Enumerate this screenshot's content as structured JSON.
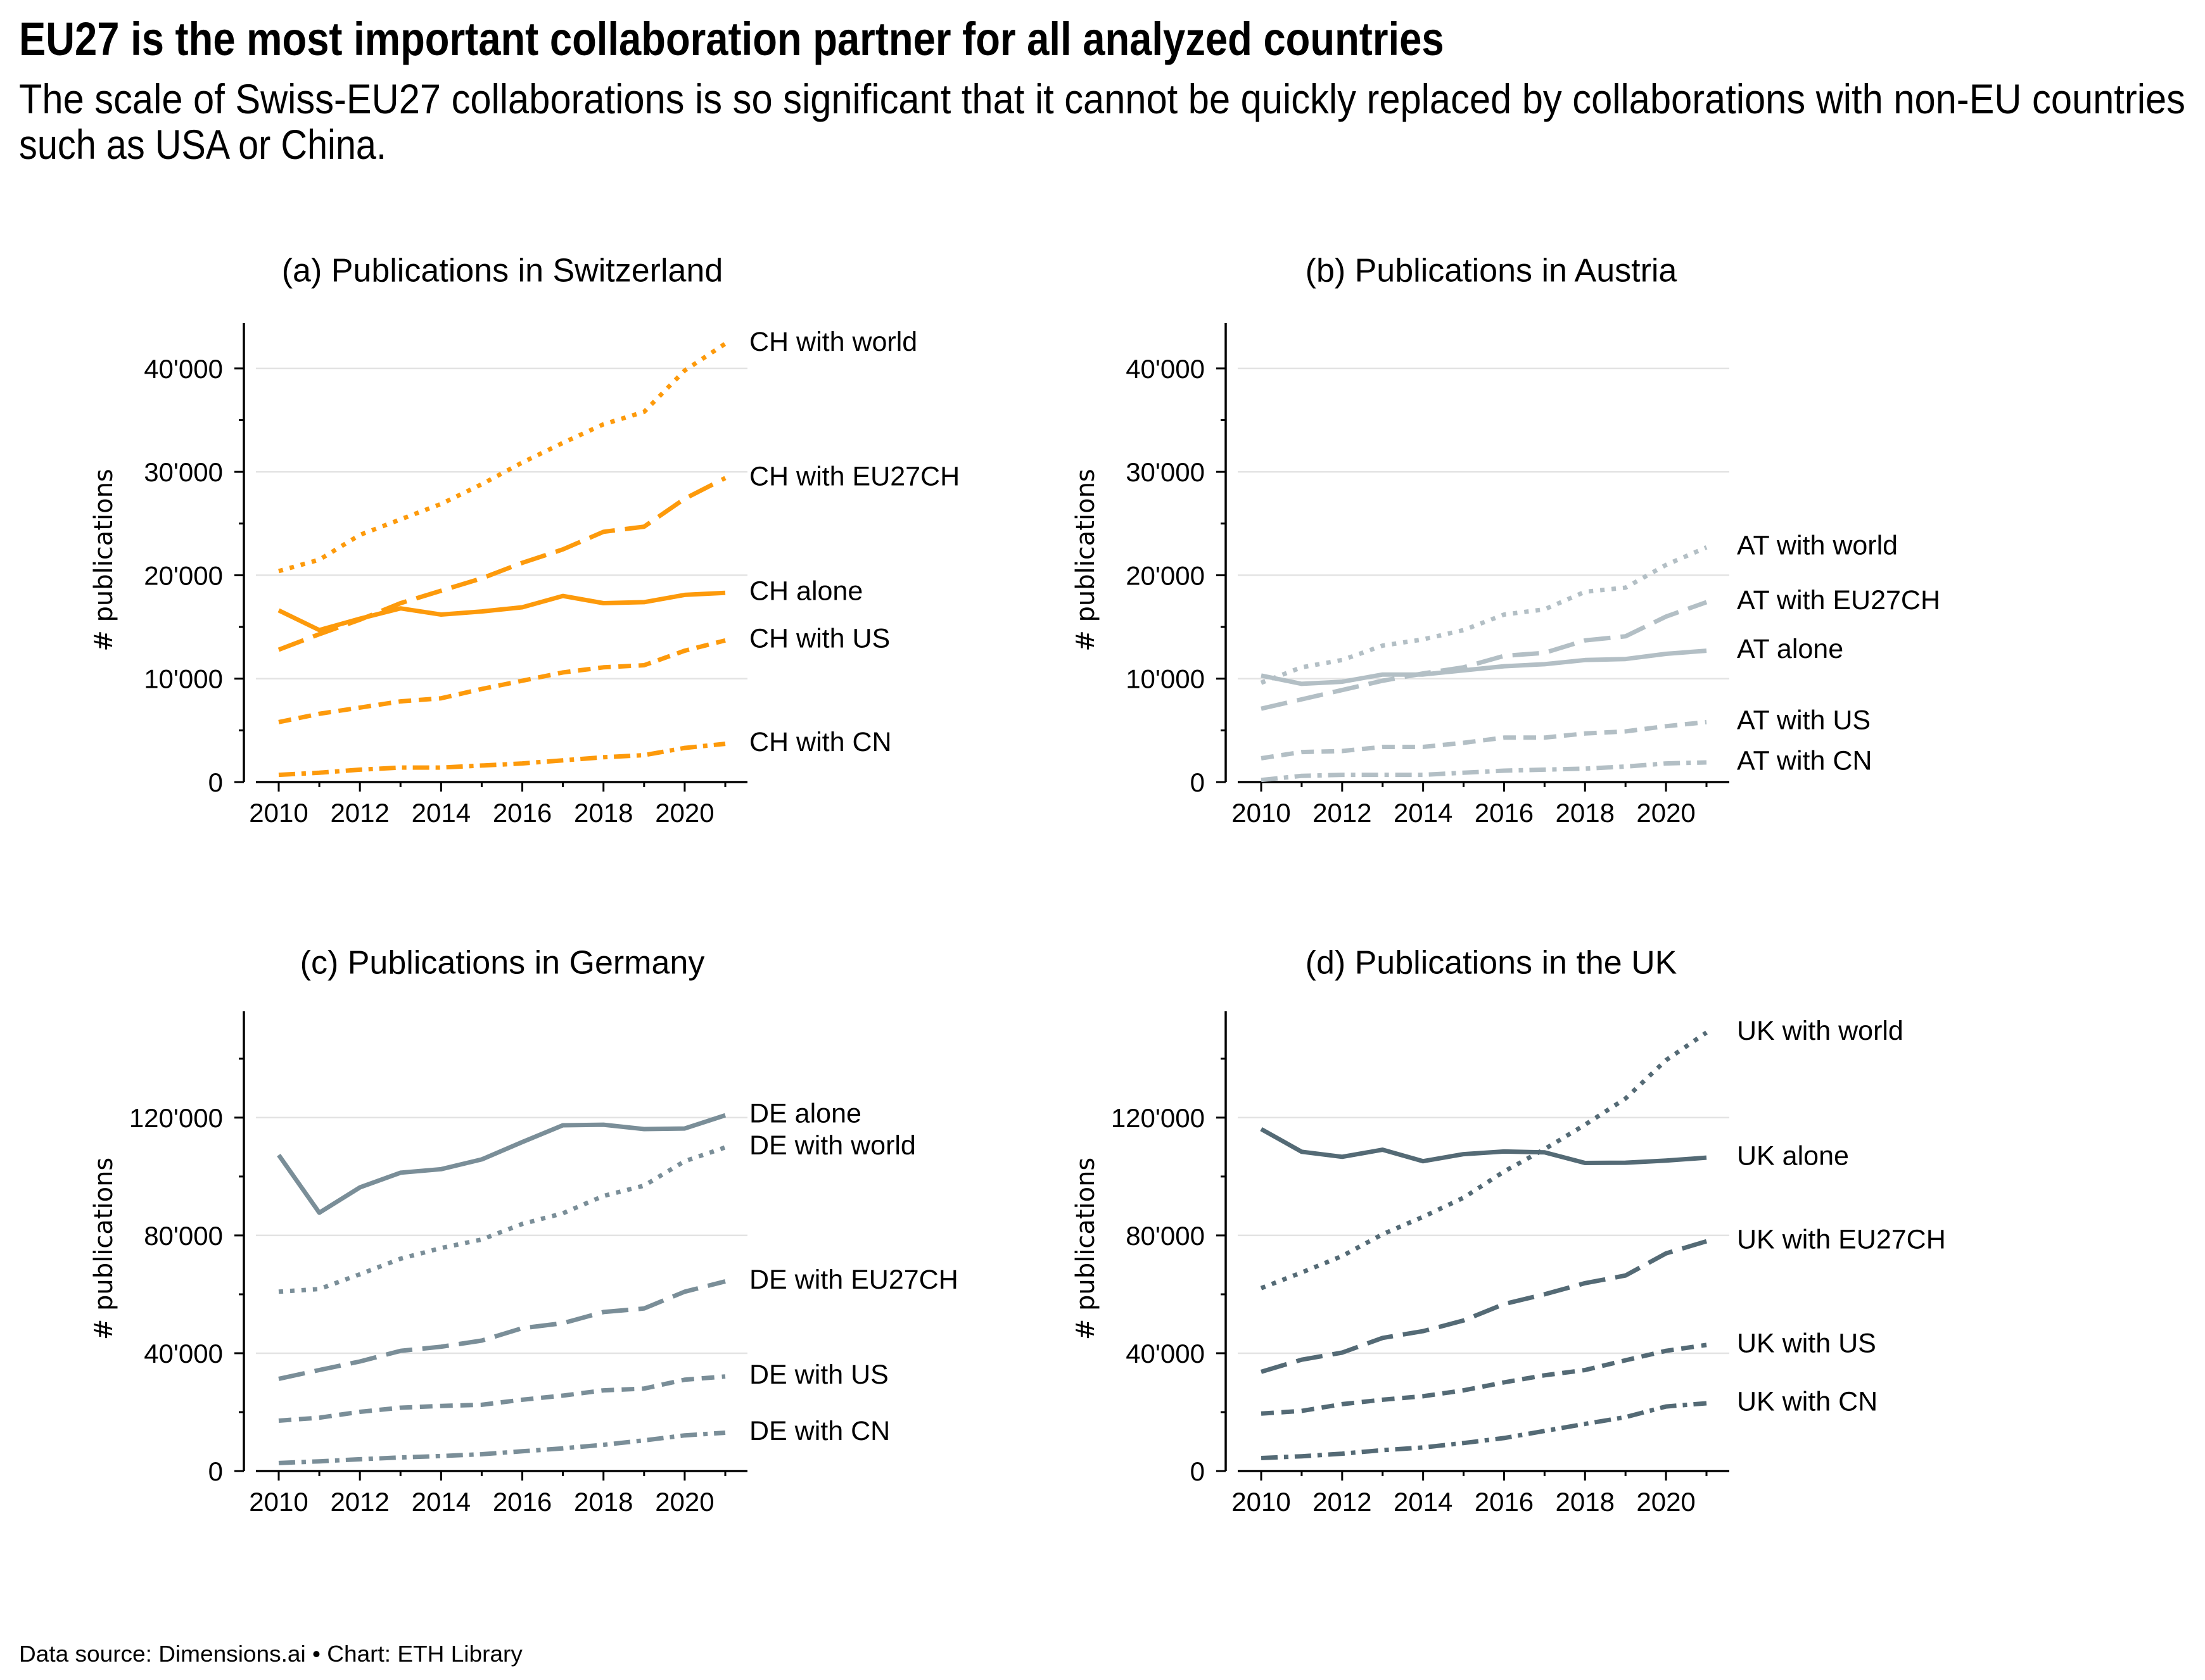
{
  "title": "EU27 is the most important collaboration partner for all analyzed countries",
  "subtitle_lines": [
    "The scale of Swiss-EU27 collaborations is so significant that it cannot be quickly replaced by collaborations with non-EU countries",
    "such as USA or China."
  ],
  "footer": "Data source: Dimensions.ai • Chart: ETH Library",
  "colors": {
    "CH": "#fd9a0b",
    "AT": "#b3bfc5",
    "DE": "#7a8e98",
    "UK": "#546a75",
    "grid": "#e3e3e3",
    "axis": "#000000"
  },
  "chart_data": [
    {
      "type": "line",
      "id": "a",
      "title": "(a) Publications in Switzerland",
      "xlabel": "",
      "ylabel": "# publications",
      "color_key": "CH",
      "x": [
        2010,
        2011,
        2012,
        2013,
        2014,
        2015,
        2016,
        2017,
        2018,
        2019,
        2020,
        2021
      ],
      "xticks": [
        2010,
        2012,
        2014,
        2016,
        2018,
        2020
      ],
      "xlim": [
        2009.2,
        2021.6
      ],
      "ylim": [
        0,
        44400
      ],
      "yticks": [
        0,
        10000,
        20000,
        30000,
        40000
      ],
      "yticklabels": [
        "0",
        "10'000",
        "20'000",
        "30'000",
        "40'000"
      ],
      "yminor": [
        5000,
        15000,
        25000,
        35000
      ],
      "grid": "horizontal",
      "series": [
        {
          "name": "CH with world",
          "style": "dotted",
          "values": [
            20400,
            21500,
            23900,
            25400,
            26900,
            28800,
            30900,
            32800,
            34600,
            35800,
            39800,
            42400
          ]
        },
        {
          "name": "CH with EU27CH",
          "style": "longdash",
          "values": [
            12800,
            14300,
            15700,
            17300,
            18500,
            19700,
            21200,
            22500,
            24200,
            24700,
            27400,
            29400
          ]
        },
        {
          "name": "CH alone",
          "style": "solid",
          "values": [
            16600,
            14700,
            15800,
            16800,
            16200,
            16500,
            16900,
            18000,
            17300,
            17400,
            18100,
            18300
          ]
        },
        {
          "name": "CH with US",
          "style": "dashed",
          "values": [
            5800,
            6600,
            7200,
            7800,
            8100,
            9000,
            9800,
            10600,
            11100,
            11300,
            12700,
            13700
          ]
        },
        {
          "name": "CH with CN",
          "style": "dashdot",
          "values": [
            700,
            900,
            1200,
            1400,
            1400,
            1600,
            1800,
            2100,
            2400,
            2600,
            3300,
            3700
          ]
        }
      ]
    },
    {
      "type": "line",
      "id": "b",
      "title": "(b) Publications in Austria",
      "xlabel": "",
      "ylabel": "# publications",
      "color_key": "AT",
      "x": [
        2010,
        2011,
        2012,
        2013,
        2014,
        2015,
        2016,
        2017,
        2018,
        2019,
        2020,
        2021
      ],
      "xticks": [
        2010,
        2012,
        2014,
        2016,
        2018,
        2020
      ],
      "xlim": [
        2009.2,
        2021.6
      ],
      "ylim": [
        0,
        44400
      ],
      "yticks": [
        0,
        10000,
        20000,
        30000,
        40000
      ],
      "yticklabels": [
        "0",
        "10'000",
        "20'000",
        "30'000",
        "40'000"
      ],
      "yminor": [
        5000,
        15000,
        25000,
        35000
      ],
      "grid": "horizontal",
      "series": [
        {
          "name": "AT with world",
          "style": "dotted",
          "values": [
            9600,
            11100,
            11800,
            13200,
            13800,
            14700,
            16200,
            16700,
            18400,
            18800,
            21000,
            22700
          ]
        },
        {
          "name": "AT with EU27CH",
          "style": "longdash",
          "values": [
            7100,
            8000,
            8900,
            9800,
            10500,
            11100,
            12200,
            12500,
            13700,
            14100,
            16000,
            17400
          ]
        },
        {
          "name": "AT alone",
          "style": "solid",
          "values": [
            10300,
            9500,
            9700,
            10400,
            10400,
            10800,
            11200,
            11400,
            11800,
            11900,
            12400,
            12700
          ]
        },
        {
          "name": "AT with US",
          "style": "dashed",
          "values": [
            2300,
            2900,
            3000,
            3400,
            3400,
            3800,
            4300,
            4300,
            4700,
            4900,
            5400,
            5800
          ]
        },
        {
          "name": "AT with CN",
          "style": "dashdot",
          "values": [
            200,
            600,
            700,
            700,
            700,
            900,
            1100,
            1200,
            1300,
            1500,
            1800,
            1900
          ]
        }
      ]
    },
    {
      "type": "line",
      "id": "c",
      "title": "(c) Publications in Germany",
      "xlabel": "",
      "ylabel": "# publications",
      "color_key": "DE",
      "x": [
        2010,
        2011,
        2012,
        2013,
        2014,
        2015,
        2016,
        2017,
        2018,
        2019,
        2020,
        2021
      ],
      "xticks": [
        2010,
        2012,
        2014,
        2016,
        2018,
        2020
      ],
      "xlim": [
        2009.2,
        2021.6
      ],
      "ylim": [
        0,
        156100
      ],
      "yticks": [
        0,
        40000,
        80000,
        120000
      ],
      "yticklabels": [
        "0",
        "40'000",
        "80'000",
        "120'000"
      ],
      "yminor": [
        20000,
        60000,
        100000,
        140000
      ],
      "grid": "horizontal",
      "series": [
        {
          "name": "DE alone",
          "style": "solid",
          "values": [
            107300,
            87700,
            96300,
            101300,
            102500,
            105800,
            111700,
            117400,
            117600,
            116100,
            116300,
            120800
          ]
        },
        {
          "name": "DE with world",
          "style": "dotted",
          "values": [
            60900,
            61800,
            66800,
            72100,
            75700,
            78600,
            83900,
            87500,
            93400,
            96900,
            105200,
            109900
          ]
        },
        {
          "name": "DE with EU27CH",
          "style": "longdash",
          "values": [
            31300,
            34300,
            37200,
            40800,
            42200,
            44300,
            48500,
            50200,
            54000,
            55200,
            60900,
            64400
          ]
        },
        {
          "name": "DE with US",
          "style": "dashed",
          "values": [
            17100,
            18100,
            20100,
            21500,
            22100,
            22500,
            24200,
            25600,
            27400,
            28000,
            31000,
            32100
          ]
        },
        {
          "name": "DE with CN",
          "style": "dashdot",
          "values": [
            2700,
            3300,
            4000,
            4600,
            5100,
            5700,
            6700,
            7700,
            8900,
            10400,
            12100,
            13000
          ]
        }
      ]
    },
    {
      "type": "line",
      "id": "d",
      "title": "(d) Publications in the UK",
      "xlabel": "",
      "ylabel": "# publications",
      "color_key": "UK",
      "x": [
        2010,
        2011,
        2012,
        2013,
        2014,
        2015,
        2016,
        2017,
        2018,
        2019,
        2020,
        2021
      ],
      "xticks": [
        2010,
        2012,
        2014,
        2016,
        2018,
        2020
      ],
      "xlim": [
        2009.2,
        2021.6
      ],
      "ylim": [
        0,
        156100
      ],
      "yticks": [
        0,
        40000,
        80000,
        120000
      ],
      "yticklabels": [
        "0",
        "40'000",
        "80'000",
        "120'000"
      ],
      "yminor": [
        20000,
        60000,
        100000,
        140000
      ],
      "grid": "horizontal",
      "series": [
        {
          "name": "UK with world",
          "style": "dotted",
          "values": [
            62100,
            67400,
            73000,
            80400,
            86300,
            92800,
            101700,
            109300,
            117600,
            126500,
            139500,
            148900
          ]
        },
        {
          "name": "UK alone",
          "style": "solid",
          "values": [
            116100,
            108400,
            106700,
            109100,
            105200,
            107600,
            108500,
            108200,
            104600,
            104700,
            105400,
            106400
          ]
        },
        {
          "name": "UK with EU27CH",
          "style": "longdash",
          "values": [
            33700,
            37800,
            40200,
            45200,
            47500,
            51100,
            56700,
            60000,
            63800,
            66400,
            73900,
            78000
          ]
        },
        {
          "name": "UK with US",
          "style": "dashed",
          "values": [
            19500,
            20400,
            22700,
            24200,
            25400,
            27400,
            30100,
            32500,
            34300,
            37600,
            40800,
            42800
          ]
        },
        {
          "name": "UK with CN",
          "style": "dashdot",
          "values": [
            4400,
            5000,
            5900,
            7100,
            8000,
            9500,
            11200,
            13600,
            16000,
            18300,
            21900,
            23000
          ]
        }
      ]
    }
  ]
}
